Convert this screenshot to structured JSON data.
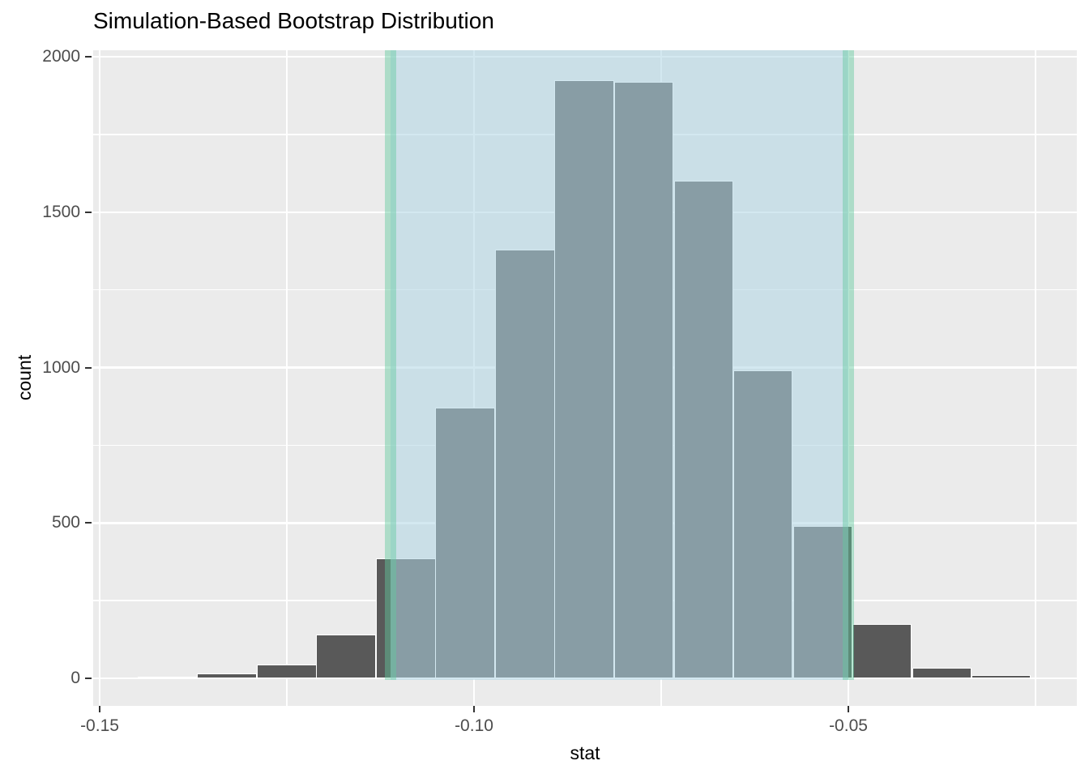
{
  "chart_data": {
    "type": "histogram",
    "title": "Simulation-Based Bootstrap Distribution",
    "xlabel": "stat",
    "ylabel": "count",
    "x_axis": {
      "tick_values": [
        -0.15,
        -0.1,
        -0.05
      ],
      "tick_labels": [
        "-0.15",
        "-0.10",
        "-0.05"
      ],
      "minor_ticks": [
        -0.125,
        -0.075,
        -0.025
      ],
      "range": [
        -0.1509,
        -0.0195
      ]
    },
    "y_axis": {
      "tick_values": [
        0,
        500,
        1000,
        1500,
        2000
      ],
      "tick_labels": [
        "0",
        "500",
        "1000",
        "1500",
        "2000"
      ],
      "minor_ticks": [
        250,
        750,
        1250,
        1750
      ],
      "range": [
        -96,
        2021
      ]
    },
    "binwidth": 0.00795,
    "bins": [
      {
        "center": -0.1409,
        "count": 5
      },
      {
        "center": -0.133,
        "count": 15
      },
      {
        "center": -0.125,
        "count": 45
      },
      {
        "center": -0.1171,
        "count": 140
      },
      {
        "center": -0.1091,
        "count": 385
      },
      {
        "center": -0.1012,
        "count": 870
      },
      {
        "center": -0.0932,
        "count": 1380
      },
      {
        "center": -0.0853,
        "count": 1925
      },
      {
        "center": -0.0773,
        "count": 1920
      },
      {
        "center": -0.0693,
        "count": 1600
      },
      {
        "center": -0.0614,
        "count": 990
      },
      {
        "center": -0.0534,
        "count": 490
      },
      {
        "center": -0.0455,
        "count": 175
      },
      {
        "center": -0.0375,
        "count": 35
      },
      {
        "center": -0.0296,
        "count": 10
      }
    ],
    "confidence_interval": {
      "lower": -0.1112,
      "upper": -0.05
    },
    "legend": "none",
    "grid": "on",
    "colors": {
      "panel_background": "#EBEBEB",
      "gridline": "#FFFFFF",
      "bar_fill": "#595959",
      "bar_outline": "#FFFFFF",
      "ci_shade_fill": "#AED5E3",
      "ci_shade_opacity": 0.55,
      "ci_line": "#61C99E",
      "ci_line_opacity": 0.45,
      "axis_text": "#4D4D4D",
      "tick_mark": "#333333",
      "title_text": "#000000"
    }
  }
}
